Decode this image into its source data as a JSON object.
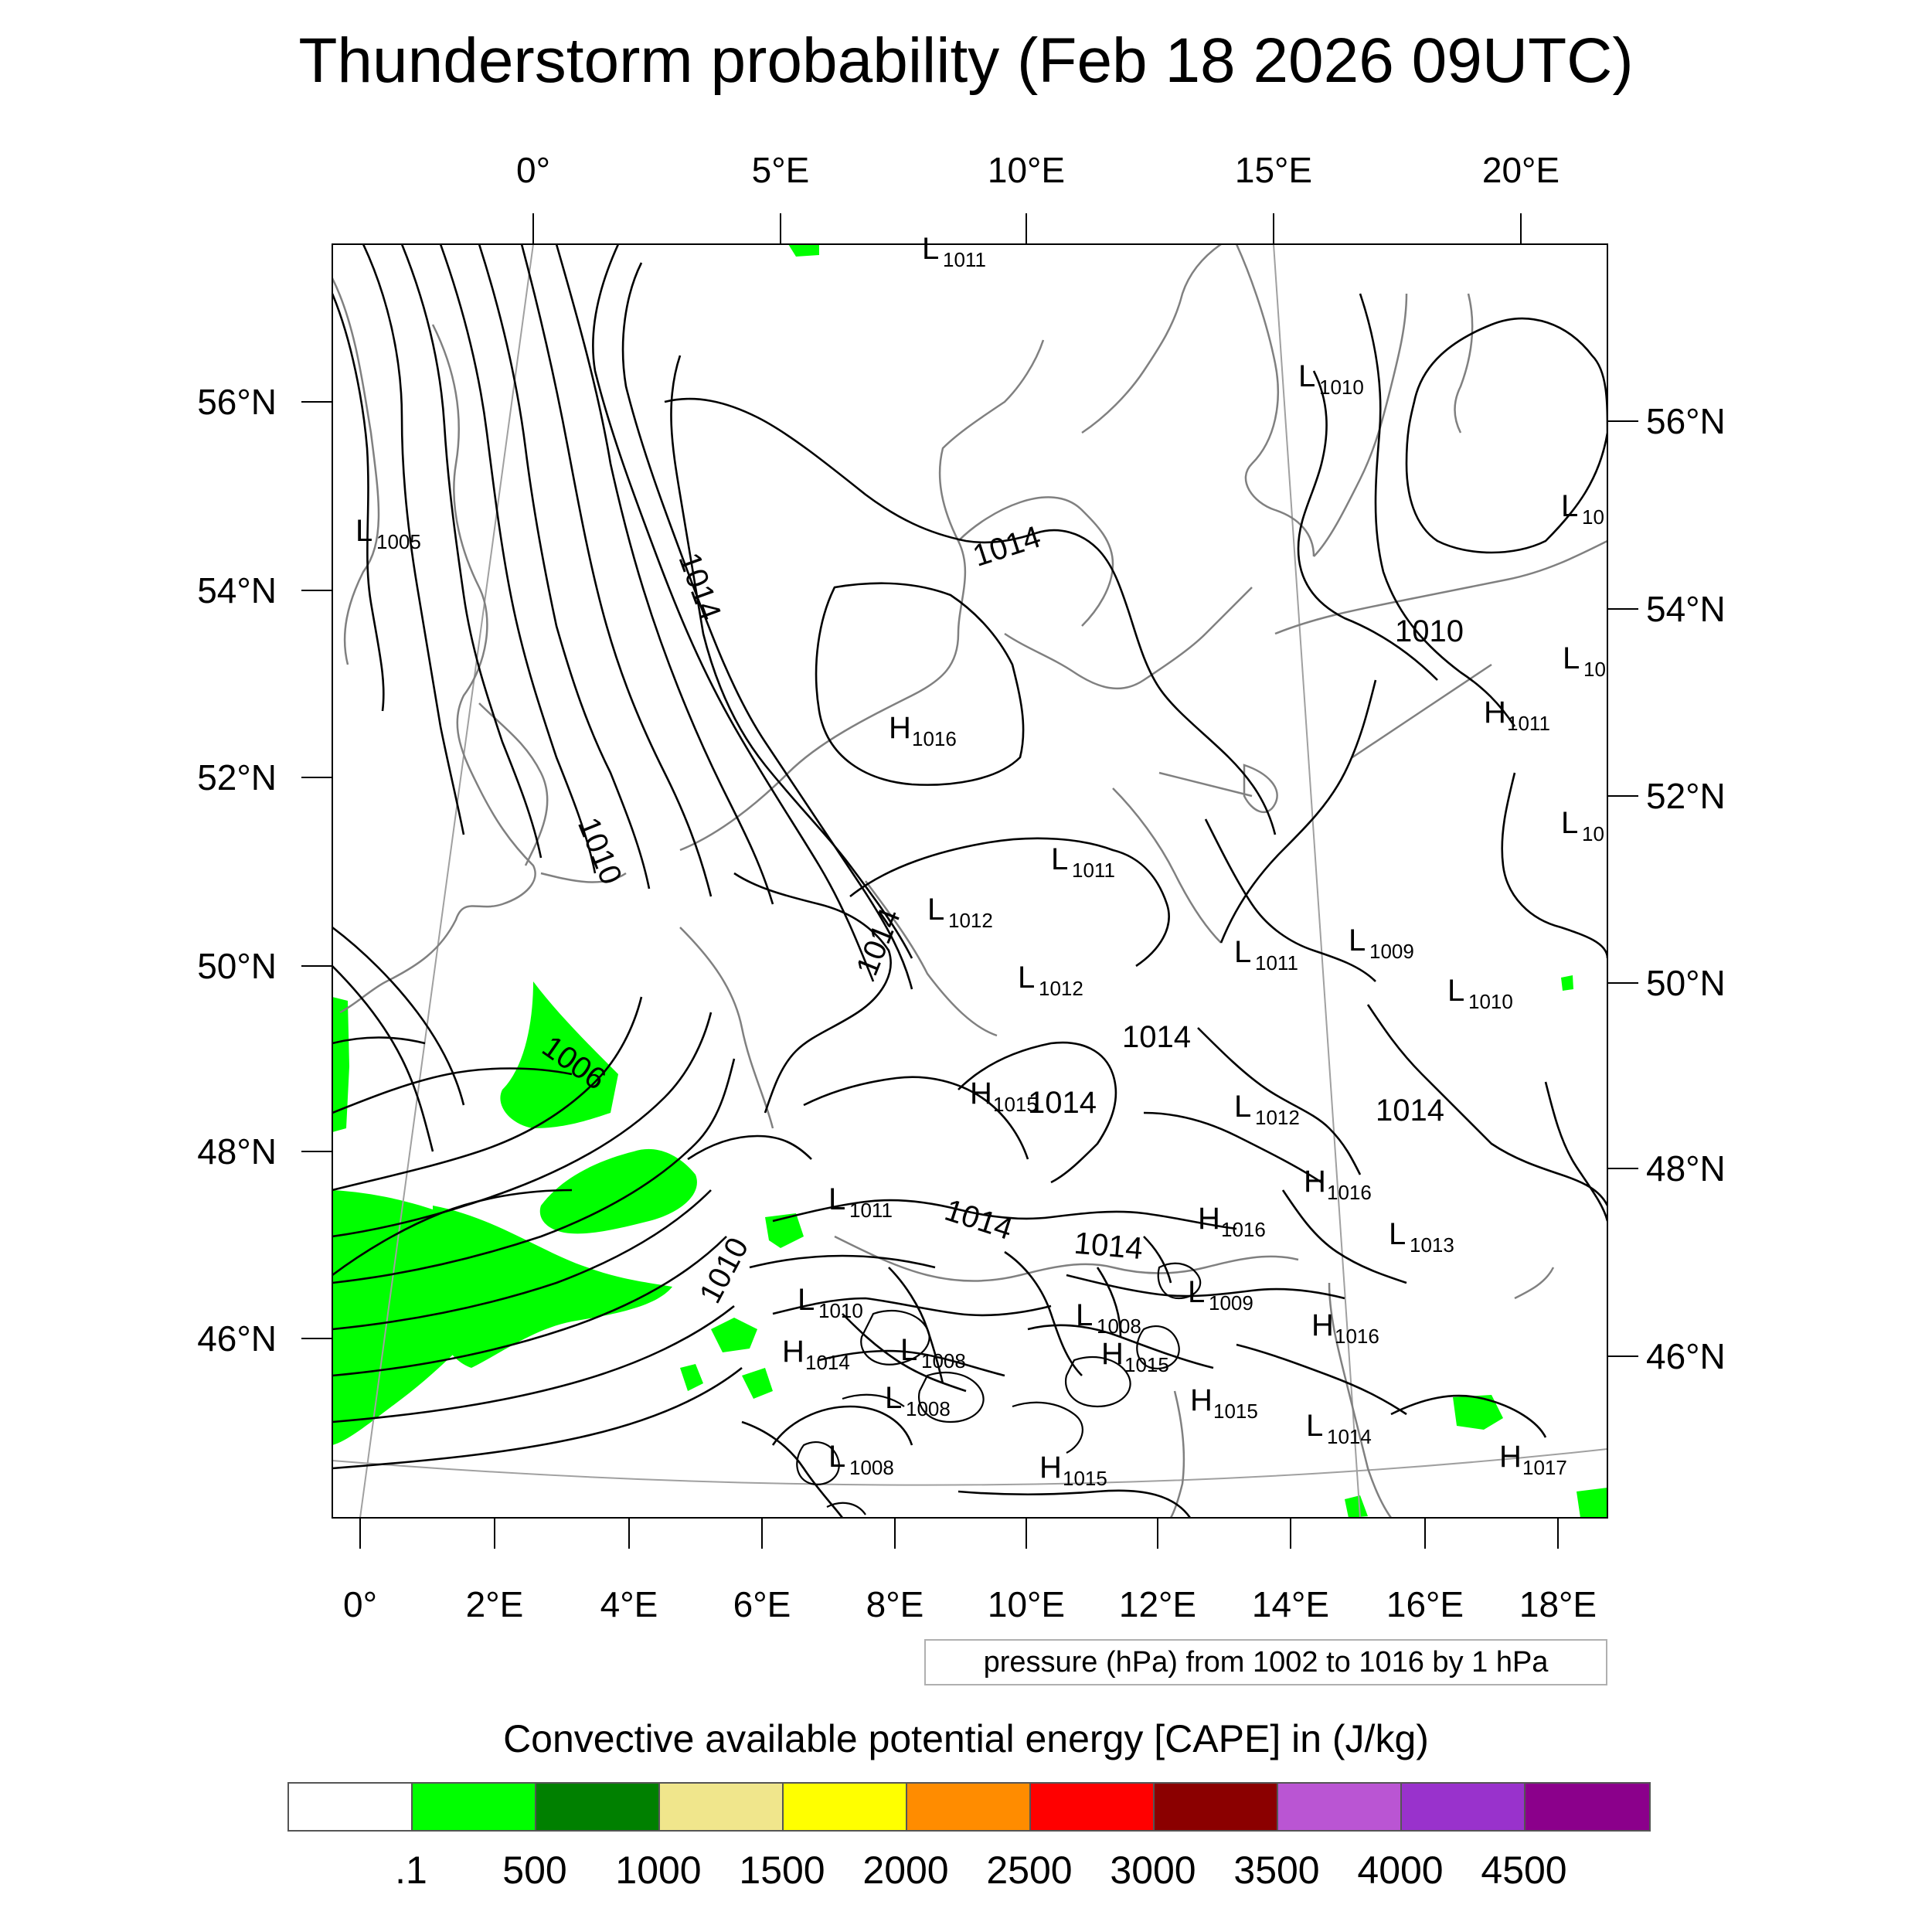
{
  "title": "Thunderstorm probability (Feb 18 2026 09UTC)",
  "axes": {
    "top_lon_labels": [
      "0°",
      "5°E",
      "10°E",
      "15°E",
      "20°E"
    ],
    "bottom_lon_labels": [
      "0°",
      "2°E",
      "4°E",
      "6°E",
      "8°E",
      "10°E",
      "12°E",
      "14°E",
      "16°E",
      "18°E"
    ],
    "left_lat_labels": [
      "56°N",
      "54°N",
      "52°N",
      "50°N",
      "48°N",
      "46°N"
    ],
    "right_lat_labels": [
      "56°N",
      "54°N",
      "52°N",
      "50°N",
      "48°N",
      "46°N"
    ]
  },
  "contour_info": "pressure (hPa) from 1002 to 1016 by 1 hPa",
  "contour_labels": [
    "1014",
    "1014",
    "1010",
    "1006",
    "1014",
    "1014",
    "1014",
    "1014",
    "1010",
    "1014",
    "1010",
    "1014"
  ],
  "pressure_centers": [
    {
      "type": "L",
      "value": "1011"
    },
    {
      "type": "L",
      "value": "1010"
    },
    {
      "type": "L",
      "value": "1005"
    },
    {
      "type": "L",
      "value": "10"
    },
    {
      "type": "L",
      "value": "10"
    },
    {
      "type": "H",
      "value": "1016"
    },
    {
      "type": "H",
      "value": "1011"
    },
    {
      "type": "L",
      "value": "10"
    },
    {
      "type": "L",
      "value": "1011"
    },
    {
      "type": "L",
      "value": "1012"
    },
    {
      "type": "L",
      "value": "1011"
    },
    {
      "type": "L",
      "value": "1009"
    },
    {
      "type": "L",
      "value": "1012"
    },
    {
      "type": "L",
      "value": "1010"
    },
    {
      "type": "H",
      "value": "1015"
    },
    {
      "type": "L",
      "value": "1012"
    },
    {
      "type": "H",
      "value": "1016"
    },
    {
      "type": "L",
      "value": "1011"
    },
    {
      "type": "H",
      "value": "1016"
    },
    {
      "type": "L",
      "value": "1013"
    },
    {
      "type": "L",
      "value": "1010"
    },
    {
      "type": "L",
      "value": "1009"
    },
    {
      "type": "L",
      "value": "1008"
    },
    {
      "type": "H",
      "value": "1016"
    },
    {
      "type": "H",
      "value": "1014"
    },
    {
      "type": "L",
      "value": "1008"
    },
    {
      "type": "H",
      "value": "1015"
    },
    {
      "type": "L",
      "value": "1008"
    },
    {
      "type": "H",
      "value": "1015"
    },
    {
      "type": "L",
      "value": "1014"
    },
    {
      "type": "L",
      "value": "1008"
    },
    {
      "type": "H",
      "value": "1015"
    },
    {
      "type": "H",
      "value": "1017"
    }
  ],
  "colorbar": {
    "title": "Convective available potential energy [CAPE] in (J/kg)",
    "labels": [
      ".1",
      "500",
      "1000",
      "1500",
      "2000",
      "2500",
      "3000",
      "3500",
      "4000",
      "4500"
    ],
    "colors": [
      "#ffffff",
      "#00ff00",
      "#008000",
      "#f0e68c",
      "#ffff00",
      "#ff8c00",
      "#ff0000",
      "#8b0000",
      "#ba55d3",
      "#9932cc",
      "#8b008b"
    ]
  },
  "colors": {
    "cape_fill": "#00ff00",
    "coastline": "#808080",
    "isobar": "#000000",
    "graticule": "#a0a0a0"
  }
}
